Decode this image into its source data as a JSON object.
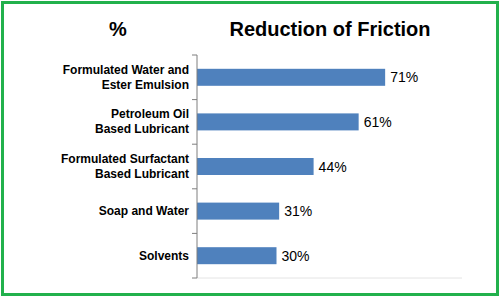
{
  "chart_data": {
    "type": "bar",
    "orientation": "horizontal",
    "title": "Reduction of Friction",
    "xlabel": "%",
    "categories": [
      "Formulated  Water and\nEster Emulsion",
      "Petroleum Oil\nBased Lubricant",
      "Formulated Surfactant\nBased Lubricant",
      "Soap and Water",
      "Solvents"
    ],
    "values": [
      71,
      61,
      44,
      31,
      30
    ],
    "value_labels": [
      "71%",
      "61%",
      "44%",
      "31%",
      "30%"
    ],
    "color": "#4f81bd",
    "xlim": [
      0,
      100
    ],
    "data_labels": true,
    "tick_labels": "y",
    "grid": false
  }
}
